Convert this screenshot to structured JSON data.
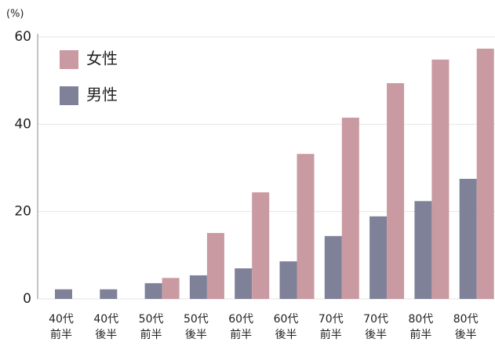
{
  "chart_data": {
    "type": "bar",
    "y_unit": "(%)",
    "categories": [
      "40代\n前半",
      "40代\n後半",
      "50代\n前半",
      "50代\n後半",
      "60代\n前半",
      "60代\n後半",
      "70代\n前半",
      "70代\n後半",
      "80代\n前半",
      "80代\n後半"
    ],
    "series": [
      {
        "name": "男性",
        "color": "#7f8199",
        "values": [
          2.2,
          2.2,
          3.6,
          5.4,
          7.0,
          8.6,
          14.4,
          18.9,
          22.4,
          27.5
        ]
      },
      {
        "name": "女性",
        "color": "#c99aa1",
        "values": [
          0,
          0,
          4.8,
          15.1,
          24.4,
          33.2,
          41.5,
          49.4,
          54.8,
          57.3
        ]
      }
    ],
    "legend_order": [
      1,
      0
    ],
    "ylim": [
      0,
      60
    ],
    "yticks": [
      0,
      20,
      40,
      60
    ],
    "grid": true
  }
}
